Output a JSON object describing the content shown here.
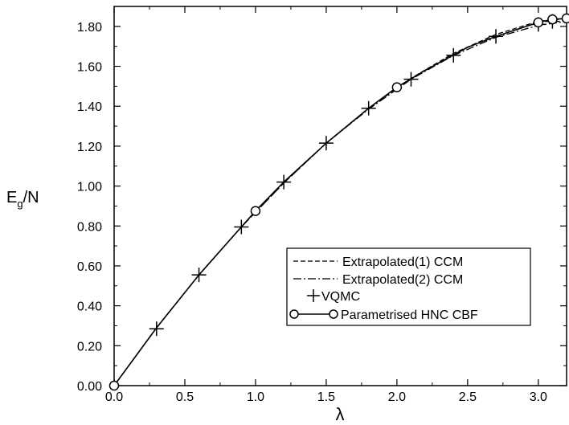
{
  "chart_data": {
    "type": "line",
    "xlabel": "λ",
    "ylabel": "E",
    "ylabel_sub": "g",
    "ylabel_suffix": "/N",
    "xlim": [
      0.0,
      3.2
    ],
    "ylim": [
      0.0,
      1.9
    ],
    "xticks": [
      "0.0",
      "0.5",
      "1.0",
      "1.5",
      "2.0",
      "2.5",
      "3.0"
    ],
    "xtick_values": [
      0.0,
      0.5,
      1.0,
      1.5,
      2.0,
      2.5,
      3.0
    ],
    "yticks": [
      "0.00",
      "0.20",
      "0.40",
      "0.60",
      "0.80",
      "1.00",
      "1.20",
      "1.40",
      "1.60",
      "1.80"
    ],
    "ytick_values": [
      0.0,
      0.2,
      0.4,
      0.6,
      0.8,
      1.0,
      1.2,
      1.4,
      1.6,
      1.8
    ],
    "grid": false,
    "legend_position": "lower-right",
    "series": [
      {
        "name": "Extrapolated(1) CCM",
        "style": "dashed",
        "color": "#000000",
        "x": [
          0.0,
          0.3,
          0.6,
          0.9,
          1.2,
          1.5,
          1.8,
          2.1,
          2.4,
          2.7,
          3.0,
          3.1,
          3.2
        ],
        "y": [
          0.0,
          0.29,
          0.555,
          0.795,
          1.015,
          1.215,
          1.39,
          1.54,
          1.665,
          1.76,
          1.825,
          1.832,
          1.84
        ]
      },
      {
        "name": "Extrapolated(2) CCM",
        "style": "dashdot",
        "color": "#000000",
        "x": [
          0.0,
          0.3,
          0.6,
          0.9,
          1.2,
          1.5,
          1.8,
          2.1,
          2.4,
          2.7,
          3.0,
          3.1,
          3.2
        ],
        "y": [
          0.0,
          0.29,
          0.555,
          0.795,
          1.015,
          1.215,
          1.385,
          1.535,
          1.655,
          1.745,
          1.805,
          1.815,
          1.825
        ]
      },
      {
        "name": "VQMC",
        "style": "plus",
        "color": "#000000",
        "x": [
          0.3,
          0.6,
          0.9,
          1.2,
          1.5,
          1.8,
          2.1,
          2.4,
          2.7,
          3.0,
          3.1
        ],
        "y": [
          0.285,
          0.555,
          0.795,
          1.02,
          1.215,
          1.39,
          1.535,
          1.655,
          1.75,
          1.81,
          1.825
        ]
      },
      {
        "name": "Parametrised HNC CBF",
        "style": "line-circle",
        "color": "#000000",
        "x": [
          0.0,
          0.3,
          0.6,
          0.9,
          1.0,
          1.2,
          1.5,
          1.8,
          2.0,
          2.2,
          2.5,
          2.7,
          3.0,
          3.1,
          3.2
        ],
        "y": [
          0.0,
          0.29,
          0.555,
          0.795,
          0.875,
          1.02,
          1.215,
          1.39,
          1.495,
          1.58,
          1.695,
          1.75,
          1.82,
          1.835,
          1.84
        ],
        "markers_x": [
          0.0,
          1.0,
          2.0,
          3.0,
          3.1,
          3.2
        ],
        "markers_y": [
          0.0,
          0.875,
          1.495,
          1.82,
          1.835,
          1.84
        ]
      }
    ]
  }
}
